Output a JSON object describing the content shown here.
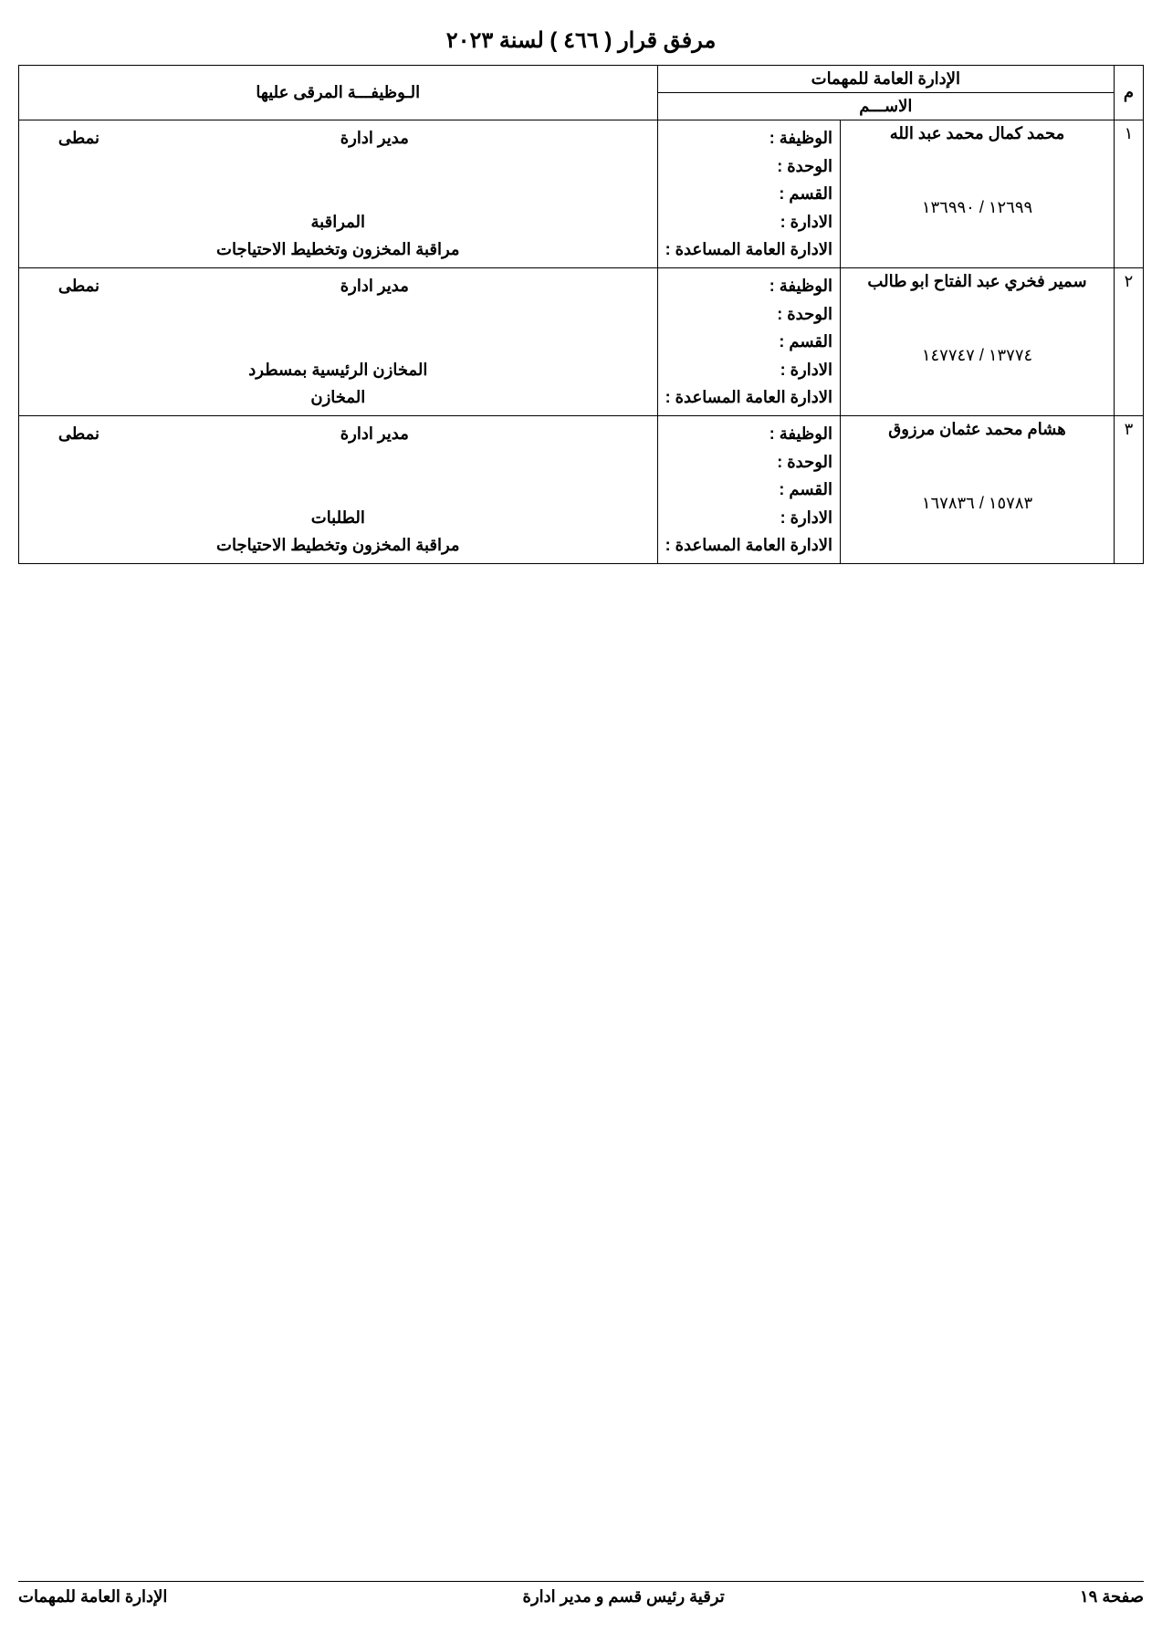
{
  "title": "مرفق قرار ( ٤٦٦ ) لسنة ٢٠٢٣",
  "department_header": "الإدارة العامة للمهمات",
  "columns": {
    "serial": "م",
    "name": "الاســـم",
    "position": "الـوظيفـــة المرقى عليها"
  },
  "field_labels": {
    "job": "الوظيفة :",
    "unit": "الوحدة :",
    "section": "القسم :",
    "admin": "الادارة :",
    "assist_admin": "الادارة العامة المساعدة :"
  },
  "rows": [
    {
      "serial": "١",
      "name": "محمد كمال محمد عبد الله",
      "codes": "١٢٦٩٩    /   ١٣٦٩٩٠",
      "job": "مدير ادارة",
      "job_type": "نمطى",
      "unit": "",
      "section": "",
      "admin": "المراقبة",
      "assist_admin": "مراقبة المخزون وتخطيط الاحتياجات"
    },
    {
      "serial": "٢",
      "name": "سمير فخري عبد الفتاح ابو طالب",
      "codes": "١٣٧٧٤    /   ١٤٧٧٤٧",
      "job": "مدير ادارة",
      "job_type": "نمطى",
      "unit": "",
      "section": "",
      "admin": "المخازن الرئيسية بمسطرد",
      "assist_admin": "المخازن"
    },
    {
      "serial": "٣",
      "name": "هشام محمد عثمان مرزوق",
      "codes": "١٥٧٨٣    /   ١٦٧٨٣٦",
      "job": "مدير ادارة",
      "job_type": "نمطى",
      "unit": "",
      "section": "",
      "admin": "الطلبات",
      "assist_admin": "مراقبة المخزون وتخطيط الاحتياجات"
    }
  ],
  "footer": {
    "page": "صفحة ١٩",
    "subject": "ترقية رئيس قسم و مدير ادارة",
    "dept": "الإدارة العامة للمهمات"
  },
  "style": {
    "text_color": "#000000",
    "bg_color": "#ffffff",
    "border_color": "#000000",
    "title_fontsize": 24,
    "body_fontsize": 18
  }
}
